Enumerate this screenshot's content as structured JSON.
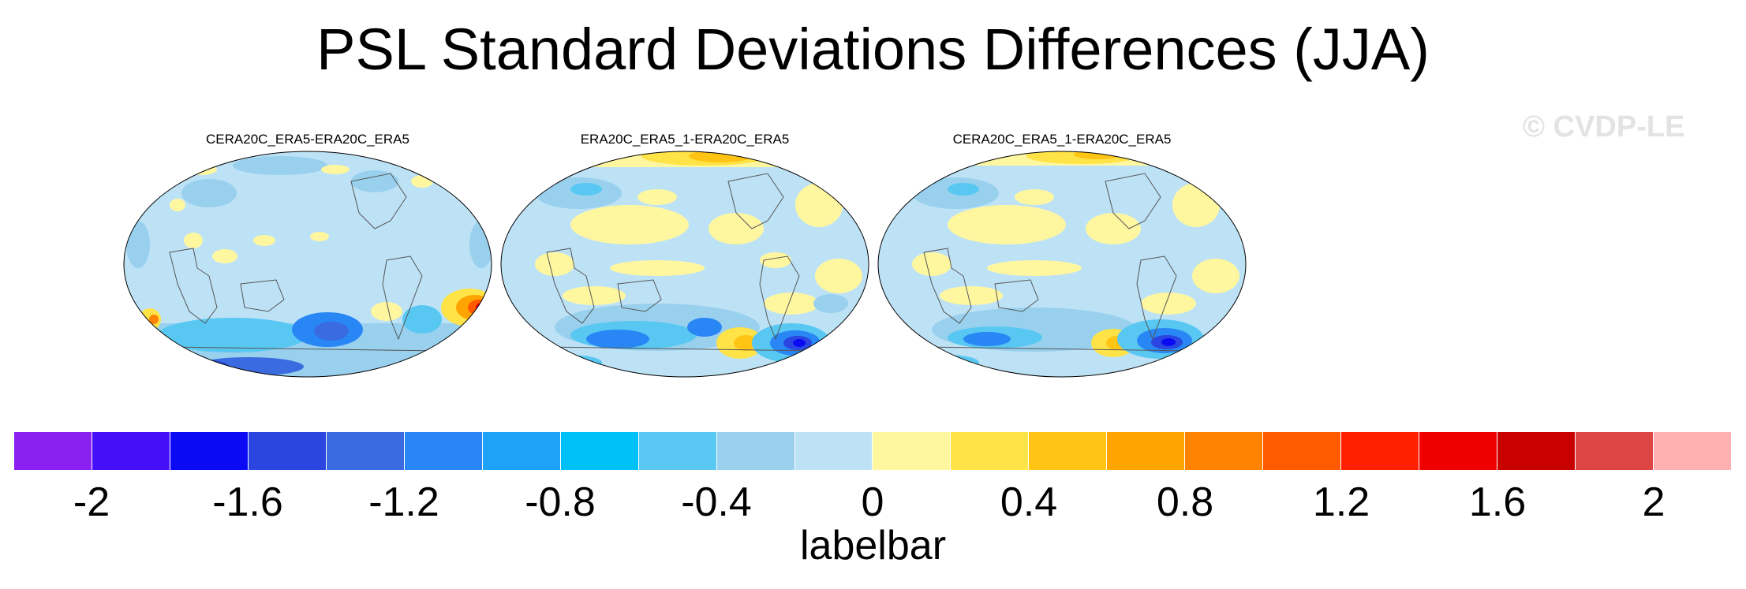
{
  "title": "PSL Standard Deviations Differences (JJA)",
  "watermark": "© CVDP-LE",
  "panels": [
    {
      "title": "CERA20C_ERA5-ERA20C_ERA5"
    },
    {
      "title": "ERA20C_ERA5_1-ERA20C_ERA5"
    },
    {
      "title": "CERA20C_ERA5_1-ERA20C_ERA5"
    }
  ],
  "colorbar": {
    "title": "labelbar",
    "colors": [
      "#8a20f0",
      "#4510f8",
      "#0a0af5",
      "#2a45e0",
      "#3a6be0",
      "#2887f5",
      "#1ea2f8",
      "#00c0f8",
      "#58c8f2",
      "#98d0ee",
      "#bde2f6",
      "#fff7a0",
      "#ffe347",
      "#ffc414",
      "#ffa400",
      "#ff8200",
      "#ff5a00",
      "#ff2000",
      "#ee0000",
      "#c80000",
      "#dd4444",
      "#ffb0b0"
    ],
    "labels": [
      "-2",
      "-1.6",
      "-1.2",
      "-0.8",
      "-0.4",
      "0",
      "0.4",
      "0.8",
      "1.2",
      "1.6",
      "2"
    ]
  }
}
